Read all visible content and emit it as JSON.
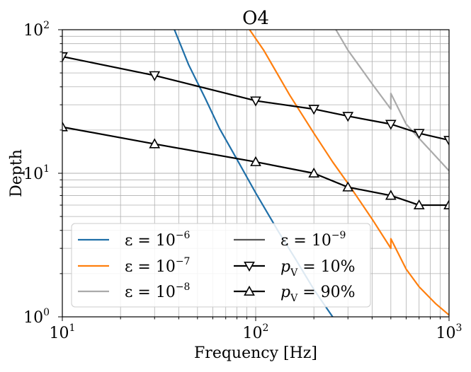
{
  "chart_data": {
    "type": "line",
    "title": "O4",
    "xlabel": "Frequency [Hz]",
    "ylabel": "Depth",
    "xscale": "log",
    "yscale": "log",
    "xlim": [
      10,
      1000
    ],
    "ylim": [
      1,
      100
    ],
    "grid": true,
    "x_ticks": [
      {
        "base": "10",
        "exp": "1"
      },
      {
        "base": "10",
        "exp": "2"
      },
      {
        "base": "10",
        "exp": "3"
      }
    ],
    "y_ticks": [
      {
        "base": "10",
        "exp": "0"
      },
      {
        "base": "10",
        "exp": "1"
      },
      {
        "base": "10",
        "exp": "2"
      }
    ],
    "series": [
      {
        "name": "ε = 10^-6",
        "label_var": "ε = 10",
        "label_exp": "−6",
        "color": "#1f6fa8",
        "marker": "none",
        "x": [
          38,
          45,
          55,
          65,
          80,
          100,
          130,
          160,
          200,
          250
        ],
        "y": [
          100,
          57,
          33,
          20.5,
          12.5,
          7.3,
          4.0,
          2.55,
          1.55,
          1.0
        ]
      },
      {
        "name": "ε = 10^-7",
        "label_var": "ε = 10",
        "label_exp": "−7",
        "color": "#ff7f0e",
        "marker": "none",
        "x": [
          93,
          110,
          150,
          200,
          250,
          300,
          400,
          500,
          500,
          600,
          700,
          850,
          1000
        ],
        "y": [
          100,
          72,
          35,
          19,
          12,
          8.5,
          4.8,
          3.0,
          3.5,
          2.15,
          1.62,
          1.24,
          1.03
        ]
      },
      {
        "name": "ε = 10^-8",
        "label_var": "ε = 10",
        "label_exp": "−8",
        "color": "#aaaaaa",
        "marker": "none",
        "x": [
          260,
          300,
          400,
          500,
          500,
          600,
          700,
          850,
          1000
        ],
        "y": [
          100,
          72,
          42,
          28,
          36,
          22,
          17.5,
          13.2,
          10.4
        ]
      },
      {
        "name": "ε = 10^-9",
        "label_var": "ε = 10",
        "label_exp": "−9",
        "color": "#555555",
        "marker": "none",
        "x": [],
        "y": []
      },
      {
        "name": "p_V = 10%",
        "label_var": "p",
        "label_sub": "V",
        "label_rest": " = 10%",
        "color": "#000000",
        "marker": "triangle-down",
        "x": [
          10,
          30,
          100,
          200,
          300,
          500,
          700,
          1000
        ],
        "y": [
          65,
          48,
          32,
          28,
          25,
          22,
          19,
          17
        ]
      },
      {
        "name": "p_V = 90%",
        "label_var": "p",
        "label_sub": "V",
        "label_rest": " = 90%",
        "color": "#000000",
        "marker": "triangle-up",
        "x": [
          10,
          30,
          100,
          200,
          300,
          500,
          700,
          1000
        ],
        "y": [
          21,
          16,
          12,
          10,
          8,
          7,
          6,
          6
        ]
      }
    ],
    "legend_placement": "lower-left"
  }
}
